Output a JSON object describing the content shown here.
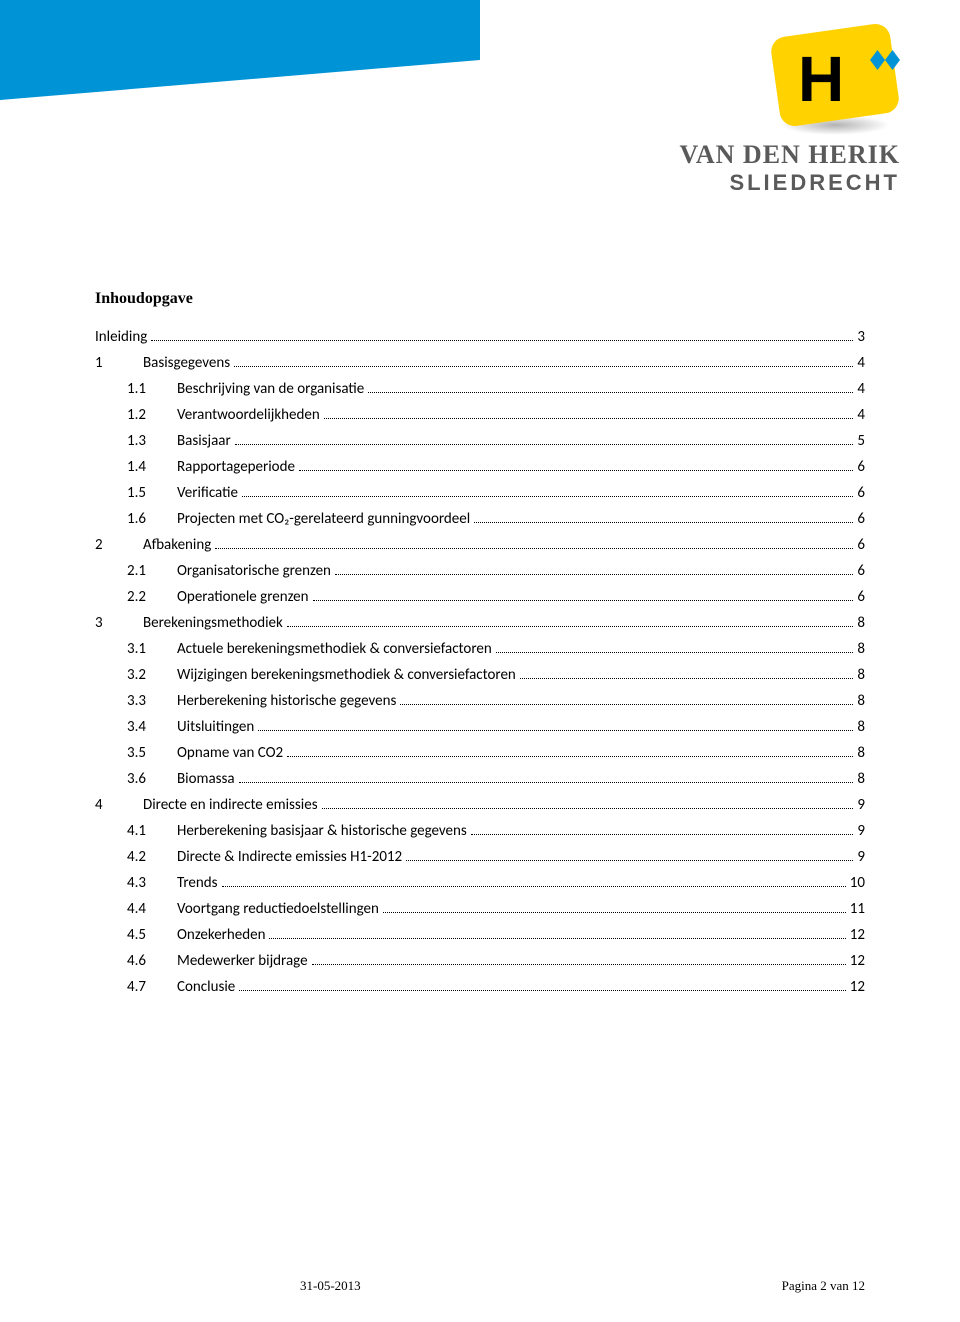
{
  "header": {
    "company_line1": "VAN DEN HERIK",
    "company_line2": "SLIEDRECHT"
  },
  "toc": {
    "title": "Inhoudopgave",
    "entries": [
      {
        "level": 0,
        "num": "",
        "label": "Inleiding",
        "page": "3"
      },
      {
        "level": 1,
        "num": "1",
        "label": "Basisgegevens",
        "page": "4"
      },
      {
        "level": 2,
        "num": "1.1",
        "label": "Beschrijving van de organisatie",
        "page": "4"
      },
      {
        "level": 2,
        "num": "1.2",
        "label": "Verantwoordelijkheden",
        "page": "4"
      },
      {
        "level": 2,
        "num": "1.3",
        "label": "Basisjaar",
        "page": "5"
      },
      {
        "level": 2,
        "num": "1.4",
        "label": "Rapportageperiode",
        "page": "6"
      },
      {
        "level": 2,
        "num": "1.5",
        "label": "Verificatie",
        "page": "6"
      },
      {
        "level": 2,
        "num": "1.6",
        "label": "Projecten met CO₂-gerelateerd gunningvoordeel",
        "page": "6"
      },
      {
        "level": 1,
        "num": "2",
        "label": "Afbakening",
        "page": "6"
      },
      {
        "level": 2,
        "num": "2.1",
        "label": "Organisatorische grenzen",
        "page": "6"
      },
      {
        "level": 2,
        "num": "2.2",
        "label": "Operationele grenzen",
        "page": "6"
      },
      {
        "level": 1,
        "num": "3",
        "label": "Berekeningsmethodiek",
        "page": "8"
      },
      {
        "level": 2,
        "num": "3.1",
        "label": "Actuele berekeningsmethodiek & conversiefactoren",
        "page": "8"
      },
      {
        "level": 2,
        "num": "3.2",
        "label": "Wijzigingen berekeningsmethodiek & conversiefactoren",
        "page": "8"
      },
      {
        "level": 2,
        "num": "3.3",
        "label": "Herberekening historische gegevens",
        "page": "8"
      },
      {
        "level": 2,
        "num": "3.4",
        "label": "Uitsluitingen",
        "page": "8"
      },
      {
        "level": 2,
        "num": "3.5",
        "label": "Opname van CO2",
        "page": "8"
      },
      {
        "level": 2,
        "num": "3.6",
        "label": "Biomassa",
        "page": "8"
      },
      {
        "level": 1,
        "num": "4",
        "label": "Directe en indirecte emissies",
        "page": "9"
      },
      {
        "level": 2,
        "num": "4.1",
        "label": "Herberekening basisjaar & historische gegevens",
        "page": "9"
      },
      {
        "level": 2,
        "num": "4.2",
        "label": "Directe & Indirecte emissies H1-2012",
        "page": "9"
      },
      {
        "level": 2,
        "num": "4.3",
        "label": "Trends",
        "page": "10"
      },
      {
        "level": 2,
        "num": "4.4",
        "label": "Voortgang reductiedoelstellingen",
        "page": "11"
      },
      {
        "level": 2,
        "num": "4.5",
        "label": "Onzekerheden",
        "page": "12"
      },
      {
        "level": 2,
        "num": "4.6",
        "label": "Medewerker bijdrage",
        "page": "12"
      },
      {
        "level": 2,
        "num": "4.7",
        "label": "Conclusie",
        "page": "12"
      }
    ]
  },
  "footer": {
    "date": "31-05-2013",
    "page_label": "Pagina 2 van 12"
  }
}
